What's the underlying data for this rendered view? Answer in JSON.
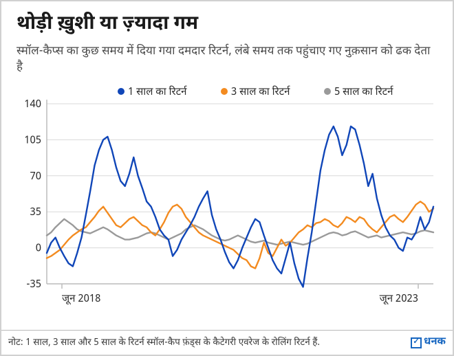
{
  "title": "थोड़ी ख़ुशी या ज़्यादा गम",
  "subtitle": "स्मॉल-कैप्स का कुछ समय में दिया गया दमदार रिटर्न, लंबे समय तक पहुंचाए गए नुक़सान को ढक देता है",
  "footnote": "नोट: 1 साल, 3 साल और 5 साल के रिटर्न स्मॉल-कैप फ़ंड्स के कैटेगरी एवरेज के रोलिंग रिटर्न हैं.",
  "brand": "धनक",
  "chart": {
    "type": "line",
    "background_color": "#ffffff",
    "grid_color": "#d8d8d8",
    "axis_color": "#bcbcbc",
    "ylim": [
      -35,
      140
    ],
    "yticks": [
      -35,
      0,
      35,
      70,
      105,
      140
    ],
    "ytick_labels": [
      "-35",
      "0",
      "35",
      "70",
      "105",
      "140"
    ],
    "x_start_label": "जून 2018",
    "x_end_label": "जून 2023",
    "label_fontsize": 15,
    "line_width": 2.4,
    "legend": {
      "items": [
        {
          "label": "1 साल का रिटर्न",
          "color": "#1046b8"
        },
        {
          "label": "3 साल का रिटर्न",
          "color": "#f38b20"
        },
        {
          "label": "5 साल का रिटर्न",
          "color": "#9a9a9a"
        }
      ],
      "marker_radius": 5
    },
    "series": [
      {
        "name": "1yr",
        "color": "#1046b8",
        "values": [
          -5,
          5,
          10,
          0,
          -8,
          -15,
          -18,
          -5,
          10,
          32,
          55,
          80,
          95,
          105,
          108,
          95,
          78,
          65,
          60,
          72,
          88,
          70,
          58,
          45,
          40,
          30,
          18,
          12,
          8,
          -8,
          -2,
          8,
          15,
          22,
          30,
          40,
          48,
          55,
          32,
          18,
          8,
          -4,
          -14,
          -20,
          -12,
          0,
          10,
          20,
          28,
          25,
          12,
          0,
          -12,
          -20,
          -25,
          -10,
          5,
          -15,
          -30,
          -38,
          -10,
          15,
          45,
          75,
          95,
          110,
          118,
          108,
          90,
          100,
          118,
          115,
          100,
          82,
          60,
          72,
          48,
          32,
          20,
          12,
          8,
          0,
          -3,
          10,
          8,
          15,
          30,
          18,
          25,
          40
        ]
      },
      {
        "name": "3yr",
        "color": "#f38b20",
        "values": [
          -10,
          -8,
          -5,
          -2,
          3,
          8,
          12,
          15,
          18,
          20,
          25,
          30,
          36,
          40,
          34,
          28,
          22,
          20,
          24,
          28,
          30,
          26,
          22,
          20,
          15,
          12,
          18,
          25,
          34,
          40,
          42,
          38,
          30,
          25,
          20,
          15,
          12,
          10,
          8,
          6,
          4,
          2,
          0,
          -2,
          -6,
          -10,
          -12,
          -18,
          -20,
          -10,
          5,
          -5,
          -8,
          0,
          8,
          2,
          5,
          10,
          15,
          18,
          22,
          20,
          24,
          25,
          28,
          26,
          22,
          20,
          24,
          30,
          28,
          25,
          30,
          28,
          22,
          18,
          15,
          20,
          25,
          30,
          32,
          28,
          25,
          30,
          36,
          42,
          45,
          42,
          35,
          38
        ]
      },
      {
        "name": "5yr",
        "color": "#9a9a9a",
        "values": [
          12,
          15,
          20,
          24,
          28,
          25,
          22,
          18,
          16,
          15,
          14,
          16,
          18,
          20,
          18,
          15,
          12,
          10,
          8,
          8,
          9,
          10,
          12,
          14,
          15,
          14,
          12,
          10,
          8,
          10,
          12,
          14,
          18,
          20,
          22,
          20,
          18,
          15,
          12,
          10,
          8,
          7,
          8,
          10,
          12,
          10,
          8,
          6,
          5,
          6,
          7,
          5,
          4,
          3,
          4,
          5,
          6,
          5,
          4,
          3,
          4,
          6,
          8,
          10,
          12,
          14,
          15,
          14,
          12,
          13,
          15,
          16,
          14,
          12,
          10,
          11,
          12,
          10,
          11,
          12,
          13,
          14,
          15,
          14,
          13,
          14,
          16,
          17,
          16,
          15
        ]
      }
    ]
  }
}
